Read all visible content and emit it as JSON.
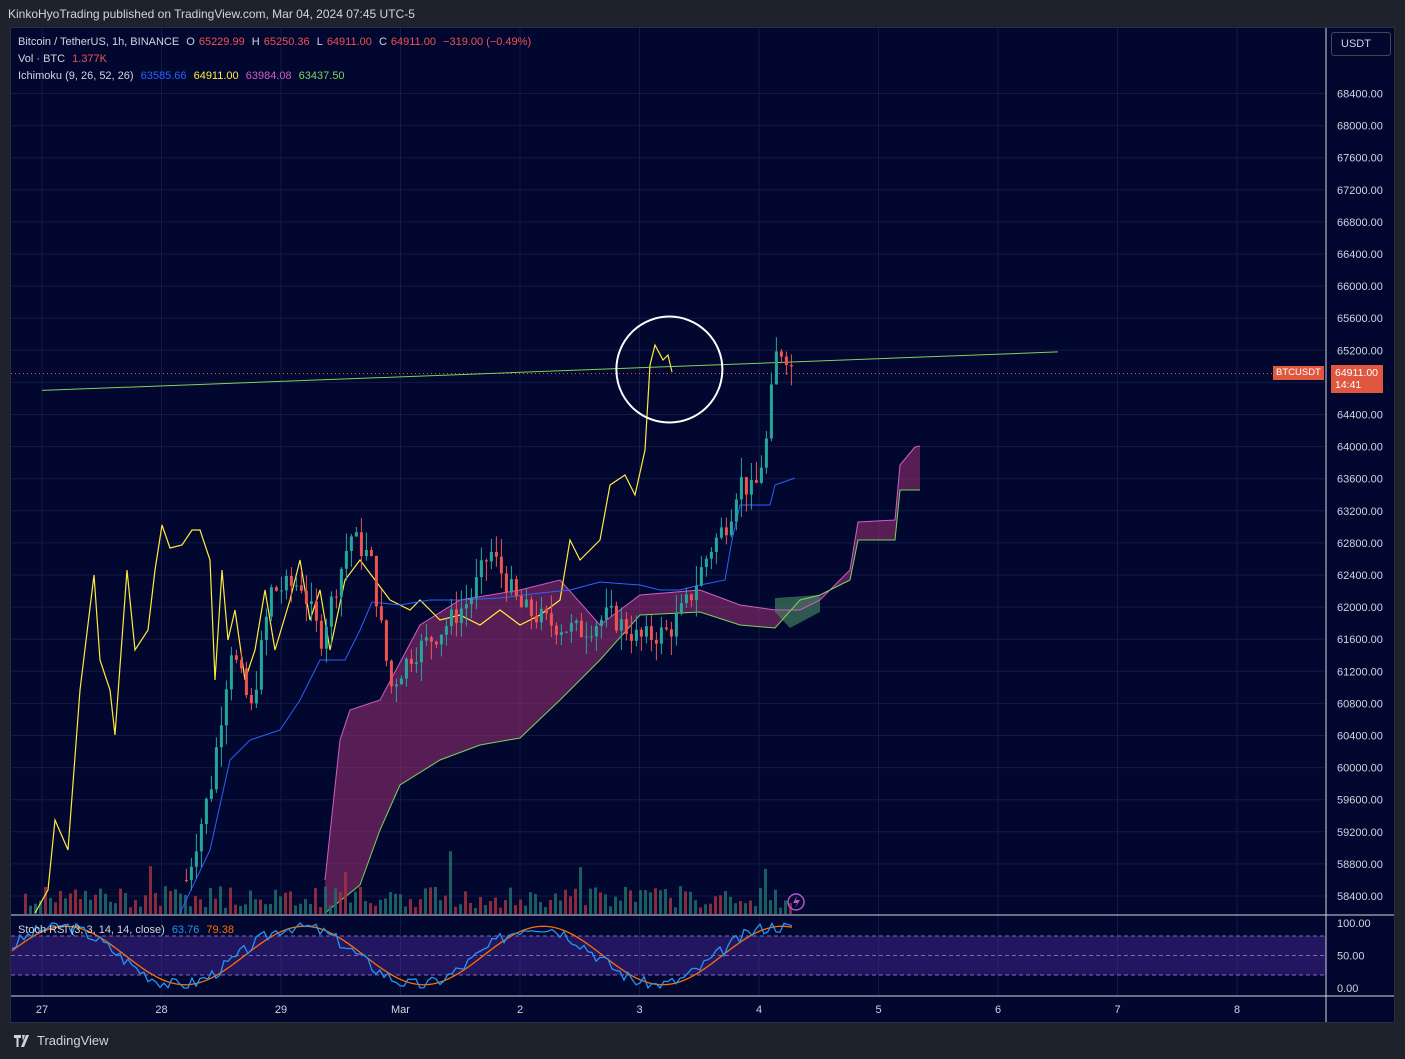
{
  "header": {
    "publish_line": "KinkoHyoTrading published on TradingView.com, Mar 04, 2024 07:45 UTC-5"
  },
  "legend": {
    "symbol": "Bitcoin / TetherUS, 1h, BINANCE",
    "ohlc": {
      "O": "65229.99",
      "H": "65250.36",
      "L": "64911.00",
      "C": "64911.00",
      "change": "−319.00 (−0.49%)"
    },
    "volume": {
      "label": "Vol · BTC",
      "value": "1.377K"
    },
    "ichimoku": {
      "label": "Ichimoku (9, 26, 52, 26)",
      "values": [
        "63585.66",
        "64911.00",
        "63984.08",
        "63437.50"
      ]
    },
    "stoch": {
      "label": "Stoch RSI (3, 3, 14, 14, close)",
      "k": "63.76",
      "d": "79.38"
    }
  },
  "currency_button": "USDT",
  "price_tag": {
    "symbol": "BTCUSDT",
    "price": "64911.00",
    "countdown": "14:41"
  },
  "footer": {
    "brand": "TradingView"
  },
  "colors": {
    "bull": "#26a69a",
    "bear": "#ef5350",
    "tenkan": "#2962ff",
    "lagging": "#ffeb3b",
    "cloud_bear": "#912e6e",
    "cloud_bull": "#3f7a5c",
    "trendline": "#7bd45a",
    "stoch_k": "#2196f3",
    "stoch_d": "#ff6d00",
    "stoch_band": "#4a2a9e",
    "background": "#020730"
  },
  "chart_data": {
    "type": "candlestick",
    "price_axis": {
      "min": 58400,
      "max": 68400,
      "step": 400,
      "labels": [
        "58400.00",
        "58800.00",
        "59200.00",
        "59600.00",
        "60000.00",
        "60400.00",
        "60800.00",
        "61200.00",
        "61600.00",
        "62000.00",
        "62400.00",
        "62800.00",
        "63200.00",
        "63600.00",
        "64000.00",
        "64400.00",
        "64800.00",
        "65200.00",
        "65600.00",
        "66000.00",
        "66400.00",
        "66800.00",
        "67200.00",
        "67600.00",
        "68000.00",
        "68400.00"
      ]
    },
    "time_axis": [
      "27",
      "28",
      "29",
      "Mar",
      "2",
      "3",
      "4",
      "5",
      "6",
      "7",
      "8"
    ],
    "stoch_axis": [
      "100.00",
      "50.00",
      "0.00"
    ],
    "last_price": 64911.0,
    "trendline": {
      "from": [
        "Feb 27 00:00",
        64700
      ],
      "to": [
        "Mar 06 12:00",
        65180
      ]
    },
    "price_path": [
      [
        "Feb 28 05:00",
        58600
      ],
      [
        "Feb 28 10:00",
        59800
      ],
      [
        "Feb 28 14:00",
        61500
      ],
      [
        "Feb 28 18:00",
        60700
      ],
      [
        "Feb 28 22:00",
        62200
      ],
      [
        "Feb 29 04:00",
        62300
      ],
      [
        "Feb 29 08:00",
        61600
      ],
      [
        "Feb 29 14:00",
        62900
      ],
      [
        "Feb 29 18:00",
        62600
      ],
      [
        "Feb 29 22:00",
        61000
      ],
      [
        "Mar 01 02:00",
        61400
      ],
      [
        "Mar 01 08:00",
        61700
      ],
      [
        "Mar 01 14:00",
        62100
      ],
      [
        "Mar 01 18:00",
        62700
      ],
      [
        "Mar 02 00:00",
        62000
      ],
      [
        "Mar 02 06:00",
        61800
      ],
      [
        "Mar 02 12:00",
        61700
      ],
      [
        "Mar 02 18:00",
        61900
      ],
      [
        "Mar 03 00:00",
        61600
      ],
      [
        "Mar 03 06:00",
        61700
      ],
      [
        "Mar 03 10:00",
        62100
      ],
      [
        "Mar 03 14:00",
        62700
      ],
      [
        "Mar 03 18:00",
        63100
      ],
      [
        "Mar 03 20:00",
        63600
      ],
      [
        "Mar 03 23:00",
        63400
      ],
      [
        "Mar 04 02:00",
        64200
      ],
      [
        "Mar 04 03:00",
        65100
      ],
      [
        "Mar 04 05:00",
        65229.99
      ],
      [
        "Mar 04 07:00",
        64911.0
      ]
    ],
    "circle_annotation": {
      "center": [
        "Mar 03 06:00",
        64960
      ]
    }
  }
}
